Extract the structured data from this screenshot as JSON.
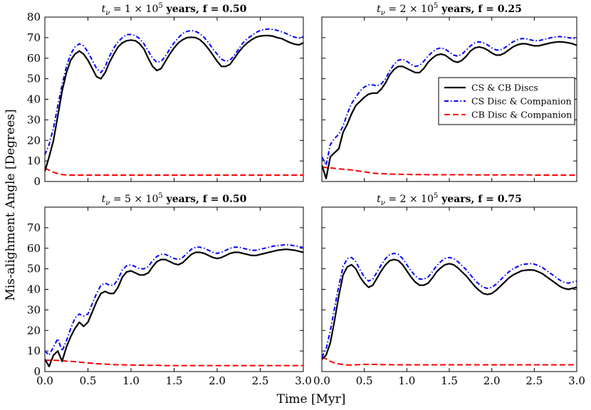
{
  "figure": {
    "ylabel": "Mis-alighment Angle [Degrees]",
    "xlabel": "Time [Myr]"
  },
  "legend": {
    "placement": "top-right panel, upper-right",
    "entries": [
      "CS & CB Discs",
      "CS Disc & Companion",
      "CB Disc & Companion"
    ]
  },
  "styles": {
    "series_colors": [
      "#000000",
      "#0000ff",
      "#ff0000"
    ],
    "series_dash": [
      "solid",
      "dash-dot",
      "dashed"
    ]
  },
  "chart_data": [
    {
      "type": "line",
      "title": "t_ν = 1 × 10^5 years, f = 0.50",
      "title_parts": {
        "pre": "t",
        "sub": "ν",
        "mid": " = 1 × 10",
        "sup": "5",
        "post": " years, f = 0.50"
      },
      "xlim": [
        0,
        3.0
      ],
      "ylim": [
        0,
        80
      ],
      "xticks": [],
      "yticks": [
        "0",
        "10",
        "20",
        "30",
        "40",
        "50",
        "60",
        "70",
        "80"
      ],
      "x": [
        0,
        0.05,
        0.1,
        0.15,
        0.2,
        0.25,
        0.3,
        0.35,
        0.4,
        0.45,
        0.5,
        0.55,
        0.6,
        0.65,
        0.7,
        0.75,
        0.8,
        0.85,
        0.9,
        0.95,
        1.0,
        1.05,
        1.1,
        1.15,
        1.2,
        1.25,
        1.3,
        1.35,
        1.4,
        1.45,
        1.5,
        1.55,
        1.6,
        1.65,
        1.7,
        1.75,
        1.8,
        1.85,
        1.9,
        1.95,
        2.0,
        2.05,
        2.1,
        2.15,
        2.2,
        2.25,
        2.3,
        2.35,
        2.4,
        2.45,
        2.5,
        2.55,
        2.6,
        2.65,
        2.7,
        2.75,
        2.8,
        2.85,
        2.9,
        2.95,
        3.0
      ],
      "series": [
        {
          "name": "CS & CB Discs",
          "values": [
            5,
            12,
            20,
            32,
            44,
            53,
            59,
            62,
            63.5,
            62,
            59,
            55,
            51,
            50,
            53,
            58,
            62,
            65.5,
            67.5,
            68.5,
            68.8,
            68.5,
            67,
            64.5,
            60,
            56,
            54,
            55,
            58.5,
            62,
            65,
            67.5,
            69,
            70,
            70.2,
            70,
            69,
            67,
            64.5,
            61.5,
            58.5,
            56,
            56,
            57,
            60,
            63,
            65.5,
            67.5,
            69,
            70.2,
            70.8,
            71,
            71,
            70.7,
            70,
            69.5,
            68.5,
            67.5,
            66.8,
            66.5,
            67.5
          ]
        },
        {
          "name": "CS Disc & Companion",
          "values": [
            13,
            18,
            26,
            37,
            47,
            56,
            62,
            65.5,
            67,
            66,
            63,
            59,
            55,
            53,
            56,
            61,
            65,
            68,
            70,
            71.5,
            71.5,
            71,
            69.5,
            67,
            63.5,
            60,
            58,
            58.5,
            61,
            64.5,
            67.5,
            70,
            72,
            73,
            73.5,
            73,
            72,
            70,
            67.5,
            64.5,
            62,
            59.5,
            58.5,
            59,
            61.5,
            64.5,
            67.5,
            69.5,
            71,
            72.5,
            73.5,
            74,
            74.2,
            74,
            73.5,
            72.8,
            72,
            71,
            70.2,
            69.8,
            70.5
          ]
        },
        {
          "name": "CB Disc & Companion",
          "values": [
            6.5,
            5.5,
            4.5,
            3.8,
            3.4,
            3.2,
            3.1,
            3.1,
            3.1,
            3.1,
            3.1,
            3.1,
            3.1,
            3.1,
            3.1,
            3.1,
            3.1,
            3.1,
            3.1,
            3.1,
            3.1,
            3.1,
            3.1,
            3.1,
            3.1,
            3.1,
            3.1,
            3.1,
            3.1,
            3.1,
            3.1,
            3.1,
            3.1,
            3.1,
            3.1,
            3.1,
            3.1,
            3.1,
            3.1,
            3.1,
            3.1,
            3.1,
            3.1,
            3.1,
            3.1,
            3.1,
            3.1,
            3.1,
            3.1,
            3.1,
            3.1,
            3.1,
            3.1,
            3.1,
            3.1,
            3.1,
            3.1,
            3.1,
            3.1,
            3.1,
            3.1
          ]
        }
      ]
    },
    {
      "type": "line",
      "title": "t_ν = 2 × 10^5 years, f = 0.25",
      "title_parts": {
        "pre": "t",
        "sub": "ν",
        "mid": " = 2 × 10",
        "sup": "5",
        "post": " years, f = 0.25"
      },
      "xlim": [
        0,
        3.0
      ],
      "ylim": [
        0,
        80
      ],
      "xticks": [],
      "yticks": [],
      "x": [
        0,
        0.05,
        0.1,
        0.15,
        0.2,
        0.25,
        0.3,
        0.35,
        0.4,
        0.45,
        0.5,
        0.55,
        0.6,
        0.65,
        0.7,
        0.75,
        0.8,
        0.85,
        0.9,
        0.95,
        1.0,
        1.05,
        1.1,
        1.15,
        1.2,
        1.25,
        1.3,
        1.35,
        1.4,
        1.45,
        1.5,
        1.55,
        1.6,
        1.65,
        1.7,
        1.75,
        1.8,
        1.85,
        1.9,
        1.95,
        2.0,
        2.05,
        2.1,
        2.15,
        2.2,
        2.25,
        2.3,
        2.35,
        2.4,
        2.45,
        2.5,
        2.55,
        2.6,
        2.65,
        2.7,
        2.75,
        2.8,
        2.85,
        2.9,
        2.95,
        3.0
      ],
      "series": [
        {
          "name": "CS & CB Discs",
          "values": [
            8,
            1.5,
            12,
            14,
            16,
            24,
            28,
            33,
            37,
            39,
            41,
            42.5,
            43,
            43,
            45,
            48,
            52,
            54.5,
            56,
            56,
            55,
            54,
            53,
            53,
            55,
            58,
            60,
            61.5,
            62,
            61.5,
            60,
            58.5,
            58,
            59,
            61,
            63.5,
            65,
            65.5,
            65,
            64,
            62.5,
            61.5,
            61.5,
            62.5,
            64,
            65.5,
            66.5,
            67,
            67,
            66.5,
            66,
            66,
            66.5,
            67,
            67.5,
            67.8,
            68,
            67.8,
            67.5,
            67,
            66.3
          ]
        },
        {
          "name": "CS Disc & Companion",
          "values": [
            12,
            8,
            18,
            21,
            23,
            27,
            33,
            38,
            41,
            44,
            46,
            47,
            47,
            46.5,
            47.5,
            50,
            54,
            57,
            59,
            59.5,
            58.5,
            57,
            56,
            56.5,
            58.5,
            61,
            63,
            64.5,
            65,
            64.5,
            63,
            61.5,
            61,
            62,
            64,
            66,
            67.5,
            68,
            67.5,
            66.5,
            65,
            64,
            64,
            65,
            66.5,
            68,
            69,
            69.5,
            69.5,
            69,
            68.5,
            68.5,
            69,
            69.5,
            70,
            70.3,
            70.5,
            70.3,
            70,
            69.7,
            69.3
          ]
        },
        {
          "name": "CB Disc & Companion",
          "values": [
            7,
            6.8,
            6.6,
            6.4,
            6.2,
            6,
            5.8,
            5.6,
            5.3,
            5,
            4.7,
            4.4,
            4.1,
            3.9,
            3.8,
            3.7,
            3.6,
            3.6,
            3.5,
            3.5,
            3.5,
            3.4,
            3.4,
            3.4,
            3.4,
            3.3,
            3.3,
            3.3,
            3.3,
            3.3,
            3.3,
            3.3,
            3.3,
            3.3,
            3.3,
            3.3,
            3.2,
            3.2,
            3.2,
            3.2,
            3.2,
            3.2,
            3.2,
            3.2,
            3.2,
            3.2,
            3.2,
            3.2,
            3.2,
            3.2,
            3.1,
            3.1,
            3.1,
            3.1,
            3.1,
            3.1,
            3.1,
            3.1,
            3.1,
            3.1,
            3.1
          ]
        }
      ]
    },
    {
      "type": "line",
      "title": "t_ν = 5 × 10^5 years, f = 0.50",
      "title_parts": {
        "pre": "t",
        "sub": "ν",
        "mid": " = 5 × 10",
        "sup": "5",
        "post": " years, f = 0.50"
      },
      "xlim": [
        0,
        3.0
      ],
      "ylim": [
        0,
        80
      ],
      "xticks": [
        "0.0",
        "0.5",
        "1.0",
        "1.5",
        "2.0",
        "2.5",
        "3.0"
      ],
      "yticks": [
        "0",
        "10",
        "20",
        "30",
        "40",
        "50",
        "60",
        "70"
      ],
      "x": [
        0,
        0.05,
        0.1,
        0.15,
        0.2,
        0.25,
        0.3,
        0.35,
        0.4,
        0.45,
        0.5,
        0.55,
        0.6,
        0.65,
        0.7,
        0.75,
        0.8,
        0.85,
        0.9,
        0.95,
        1.0,
        1.05,
        1.1,
        1.15,
        1.2,
        1.25,
        1.3,
        1.35,
        1.4,
        1.45,
        1.5,
        1.55,
        1.6,
        1.65,
        1.7,
        1.75,
        1.8,
        1.85,
        1.9,
        1.95,
        2.0,
        2.05,
        2.1,
        2.15,
        2.2,
        2.25,
        2.3,
        2.35,
        2.4,
        2.45,
        2.5,
        2.55,
        2.6,
        2.65,
        2.7,
        2.75,
        2.8,
        2.85,
        2.9,
        2.95,
        3.0
      ],
      "series": [
        {
          "name": "CS & CB Discs",
          "values": [
            6,
            2.5,
            8,
            10,
            5,
            12,
            17,
            21,
            24,
            22,
            24,
            29,
            34,
            38,
            39,
            38,
            38,
            41,
            46,
            48.5,
            49,
            48,
            47,
            47,
            48,
            51,
            53.5,
            54.5,
            54.5,
            53.5,
            52.5,
            52,
            53,
            55,
            57,
            58,
            58,
            57.5,
            56.5,
            55.5,
            55,
            55.5,
            56.5,
            57.5,
            58,
            58,
            57.5,
            57,
            56.5,
            56.5,
            57,
            57.5,
            58,
            58.5,
            59,
            59.3,
            59.5,
            59.3,
            59,
            58.5,
            58
          ]
        },
        {
          "name": "CS Disc & Companion",
          "values": [
            10,
            8,
            12,
            16,
            10,
            15,
            21,
            26,
            28,
            27,
            28,
            33,
            38,
            42,
            43,
            42,
            42,
            45,
            49.5,
            51.5,
            52,
            51,
            50,
            50,
            51,
            54,
            56,
            57,
            57,
            56,
            55,
            54.5,
            55.5,
            57.5,
            59.5,
            60.5,
            60.5,
            60,
            59,
            58,
            57.5,
            58,
            59,
            60,
            60.5,
            60.5,
            60,
            59.5,
            59,
            59,
            59.5,
            60,
            60.5,
            61,
            61.3,
            61.5,
            61.8,
            61.5,
            61.2,
            60.8,
            60.3
          ]
        },
        {
          "name": "CB Disc & Companion",
          "values": [
            5.5,
            5.5,
            5.5,
            5.4,
            5.3,
            5.1,
            5,
            4.8,
            4.6,
            4.4,
            4.2,
            4,
            3.8,
            3.7,
            3.6,
            3.5,
            3.4,
            3.3,
            3.3,
            3.2,
            3.2,
            3.1,
            3.1,
            3.1,
            3,
            3,
            3,
            3,
            2.9,
            2.9,
            2.9,
            2.9,
            2.9,
            2.9,
            2.9,
            2.9,
            2.9,
            2.9,
            2.9,
            2.9,
            2.9,
            2.9,
            2.9,
            2.9,
            2.9,
            2.9,
            2.9,
            2.9,
            2.9,
            2.9,
            2.9,
            2.9,
            2.9,
            2.9,
            2.9,
            2.9,
            2.9,
            2.9,
            2.9,
            2.9,
            2.9
          ]
        }
      ]
    },
    {
      "type": "line",
      "title": "t_ν = 2 × 10^5 years, f = 0.75",
      "title_parts": {
        "pre": "t",
        "sub": "ν",
        "mid": " = 2 × 10",
        "sup": "5",
        "post": " years, f = 0.75"
      },
      "xlim": [
        0,
        3.0
      ],
      "ylim": [
        0,
        80
      ],
      "xticks": [
        "0.0",
        "0.5",
        "1.0",
        "1.5",
        "2.0",
        "2.5",
        "3.0"
      ],
      "yticks": [],
      "x": [
        0,
        0.05,
        0.1,
        0.15,
        0.2,
        0.25,
        0.3,
        0.35,
        0.4,
        0.45,
        0.5,
        0.55,
        0.6,
        0.65,
        0.7,
        0.75,
        0.8,
        0.85,
        0.9,
        0.95,
        1.0,
        1.05,
        1.1,
        1.15,
        1.2,
        1.25,
        1.3,
        1.35,
        1.4,
        1.45,
        1.5,
        1.55,
        1.6,
        1.65,
        1.7,
        1.75,
        1.8,
        1.85,
        1.9,
        1.95,
        2.0,
        2.05,
        2.1,
        2.15,
        2.2,
        2.25,
        2.3,
        2.35,
        2.4,
        2.45,
        2.5,
        2.55,
        2.6,
        2.65,
        2.7,
        2.75,
        2.8,
        2.85,
        2.9,
        2.95,
        3.0
      ],
      "series": [
        {
          "name": "CS & CB Discs",
          "values": [
            6,
            8,
            14,
            25,
            37,
            47,
            51,
            52,
            50,
            46,
            43,
            41,
            42,
            45.5,
            49,
            52,
            54,
            54.5,
            54,
            52,
            49,
            46,
            43.5,
            42,
            42,
            43,
            45.5,
            48.5,
            50.5,
            52,
            52.5,
            52,
            50.5,
            48.5,
            46.5,
            44,
            41.5,
            39.5,
            38,
            37.5,
            38,
            39.5,
            41.5,
            43.5,
            45.5,
            47,
            48,
            49,
            49.3,
            49.5,
            49.3,
            48.5,
            47.5,
            46,
            44.5,
            43,
            41.5,
            40.5,
            40,
            40.5,
            41
          ]
        },
        {
          "name": "CS Disc & Companion",
          "values": [
            7,
            11,
            20,
            31,
            42,
            51,
            55,
            55.5,
            53.5,
            49.5,
            46,
            44,
            45,
            48.5,
            52,
            55,
            57,
            57.5,
            57,
            55,
            52,
            49,
            46.5,
            45,
            45,
            46,
            48.5,
            51.5,
            53.5,
            55,
            55.5,
            55,
            53.5,
            51.5,
            49.5,
            47,
            44.5,
            42.5,
            41,
            40.5,
            41,
            42.5,
            44.5,
            46.5,
            48.5,
            50,
            51,
            52,
            52.3,
            52.5,
            52.3,
            51.5,
            50.5,
            49,
            47.5,
            46,
            44.5,
            43.5,
            43,
            43.5,
            44
          ]
        },
        {
          "name": "CB Disc & Companion",
          "values": [
            7,
            6.2,
            5,
            4.2,
            3.7,
            3.4,
            3.2,
            3.2,
            3.3,
            3.4,
            3.5,
            3.5,
            3.5,
            3.5,
            3.4,
            3.4,
            3.4,
            3.3,
            3.3,
            3.3,
            3.3,
            3.3,
            3.3,
            3.3,
            3.3,
            3.3,
            3.3,
            3.3,
            3.3,
            3.3,
            3.3,
            3.3,
            3.3,
            3.3,
            3.3,
            3.3,
            3.3,
            3.3,
            3.3,
            3.3,
            3.3,
            3.3,
            3.3,
            3.3,
            3.3,
            3.3,
            3.3,
            3.3,
            3.3,
            3.3,
            3.3,
            3.3,
            3.3,
            3.3,
            3.3,
            3.3,
            3.3,
            3.3,
            3.3,
            3.3,
            3.3
          ]
        }
      ]
    }
  ]
}
